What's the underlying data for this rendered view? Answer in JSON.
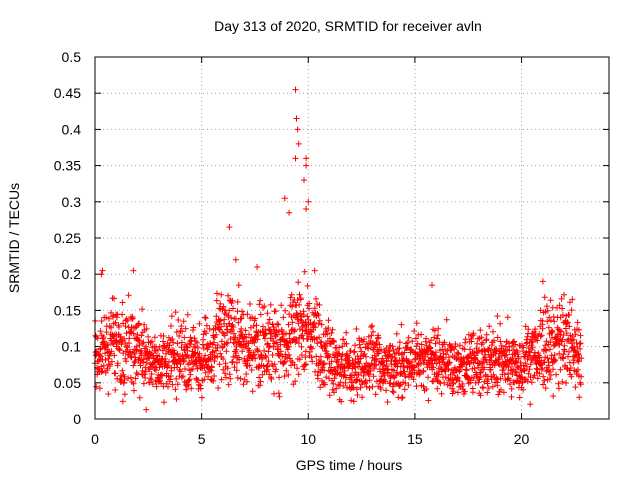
{
  "chart_data": {
    "type": "scatter",
    "title": "Day 313 of 2020, SRMTID for receiver avln",
    "xlabel": "GPS time / hours",
    "ylabel": "SRMTID / TECUs",
    "xlim": [
      0,
      24.1
    ],
    "ylim": [
      0,
      0.5
    ],
    "xticks": [
      0,
      5,
      10,
      15,
      20
    ],
    "yticks": [
      0,
      0.05,
      0.1,
      0.15,
      0.2,
      0.25,
      0.3,
      0.35,
      0.4,
      0.45,
      0.5
    ],
    "grid": true,
    "marker": "+",
    "series_color": "#ff0000",
    "x_data_range": [
      0,
      22.8
    ],
    "n_points": 2200,
    "mean_profile": [
      [
        0.0,
        0.085
      ],
      [
        1.0,
        0.11
      ],
      [
        2.0,
        0.1
      ],
      [
        3.0,
        0.07
      ],
      [
        4.0,
        0.09
      ],
      [
        5.0,
        0.08
      ],
      [
        6.0,
        0.12
      ],
      [
        7.0,
        0.1
      ],
      [
        8.0,
        0.1
      ],
      [
        9.0,
        0.11
      ],
      [
        9.5,
        0.13
      ],
      [
        10.0,
        0.12
      ],
      [
        11.0,
        0.08
      ],
      [
        12.0,
        0.07
      ],
      [
        13.0,
        0.08
      ],
      [
        14.0,
        0.07
      ],
      [
        15.0,
        0.08
      ],
      [
        16.0,
        0.08
      ],
      [
        17.0,
        0.07
      ],
      [
        18.0,
        0.08
      ],
      [
        19.0,
        0.08
      ],
      [
        20.0,
        0.07
      ],
      [
        21.0,
        0.1
      ],
      [
        22.0,
        0.11
      ],
      [
        22.8,
        0.08
      ]
    ],
    "notable_points": [
      [
        0.3,
        0.2
      ],
      [
        0.35,
        0.205
      ],
      [
        1.8,
        0.205
      ],
      [
        2.4,
        0.013
      ],
      [
        6.3,
        0.265
      ],
      [
        6.6,
        0.22
      ],
      [
        7.6,
        0.21
      ],
      [
        8.9,
        0.305
      ],
      [
        9.1,
        0.285
      ],
      [
        9.4,
        0.455
      ],
      [
        9.45,
        0.415
      ],
      [
        9.5,
        0.4
      ],
      [
        9.55,
        0.38
      ],
      [
        9.4,
        0.36
      ],
      [
        9.9,
        0.36
      ],
      [
        9.9,
        0.35
      ],
      [
        9.8,
        0.33
      ],
      [
        10.0,
        0.3
      ],
      [
        9.9,
        0.29
      ],
      [
        10.3,
        0.205
      ],
      [
        15.8,
        0.185
      ],
      [
        21.0,
        0.19
      ]
    ]
  }
}
